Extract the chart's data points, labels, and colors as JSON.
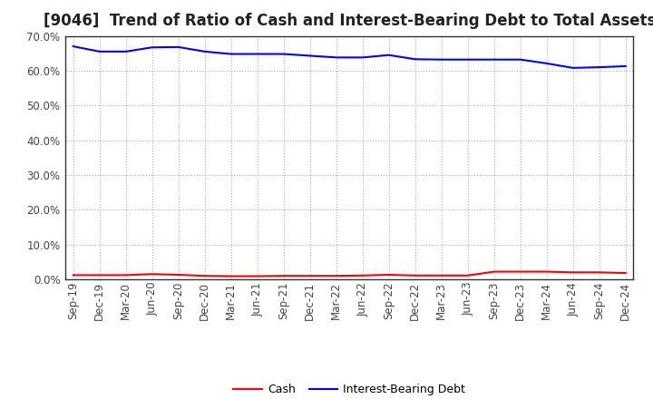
{
  "title": "[9046]  Trend of Ratio of Cash and Interest-Bearing Debt to Total Assets",
  "x_labels": [
    "Sep-19",
    "Dec-19",
    "Mar-20",
    "Jun-20",
    "Sep-20",
    "Dec-20",
    "Mar-21",
    "Jun-21",
    "Sep-21",
    "Dec-21",
    "Mar-22",
    "Jun-22",
    "Sep-22",
    "Dec-22",
    "Mar-23",
    "Jun-23",
    "Sep-23",
    "Dec-23",
    "Mar-24",
    "Jun-24",
    "Sep-24",
    "Dec-24"
  ],
  "interest_bearing_debt": [
    0.67,
    0.655,
    0.655,
    0.667,
    0.668,
    0.655,
    0.648,
    0.648,
    0.648,
    0.643,
    0.638,
    0.638,
    0.645,
    0.633,
    0.632,
    0.632,
    0.632,
    0.632,
    0.621,
    0.608,
    0.61,
    0.613
  ],
  "cash": [
    0.012,
    0.012,
    0.012,
    0.015,
    0.013,
    0.01,
    0.009,
    0.009,
    0.01,
    0.01,
    0.01,
    0.011,
    0.013,
    0.011,
    0.011,
    0.011,
    0.022,
    0.022,
    0.022,
    0.02,
    0.02,
    0.018
  ],
  "cash_color": "#ff0000",
  "debt_color": "#0000ff",
  "background_color": "#ffffff",
  "plot_bg_color": "#ffffff",
  "grid_color": "#aaaaaa",
  "ylim": [
    0.0,
    0.7
  ],
  "yticks": [
    0.0,
    0.1,
    0.2,
    0.3,
    0.4,
    0.5,
    0.6,
    0.7
  ],
  "legend_cash": "Cash",
  "legend_debt": "Interest-Bearing Debt",
  "title_fontsize": 12,
  "axis_fontsize": 8.5,
  "legend_fontsize": 9,
  "line_width": 1.5
}
